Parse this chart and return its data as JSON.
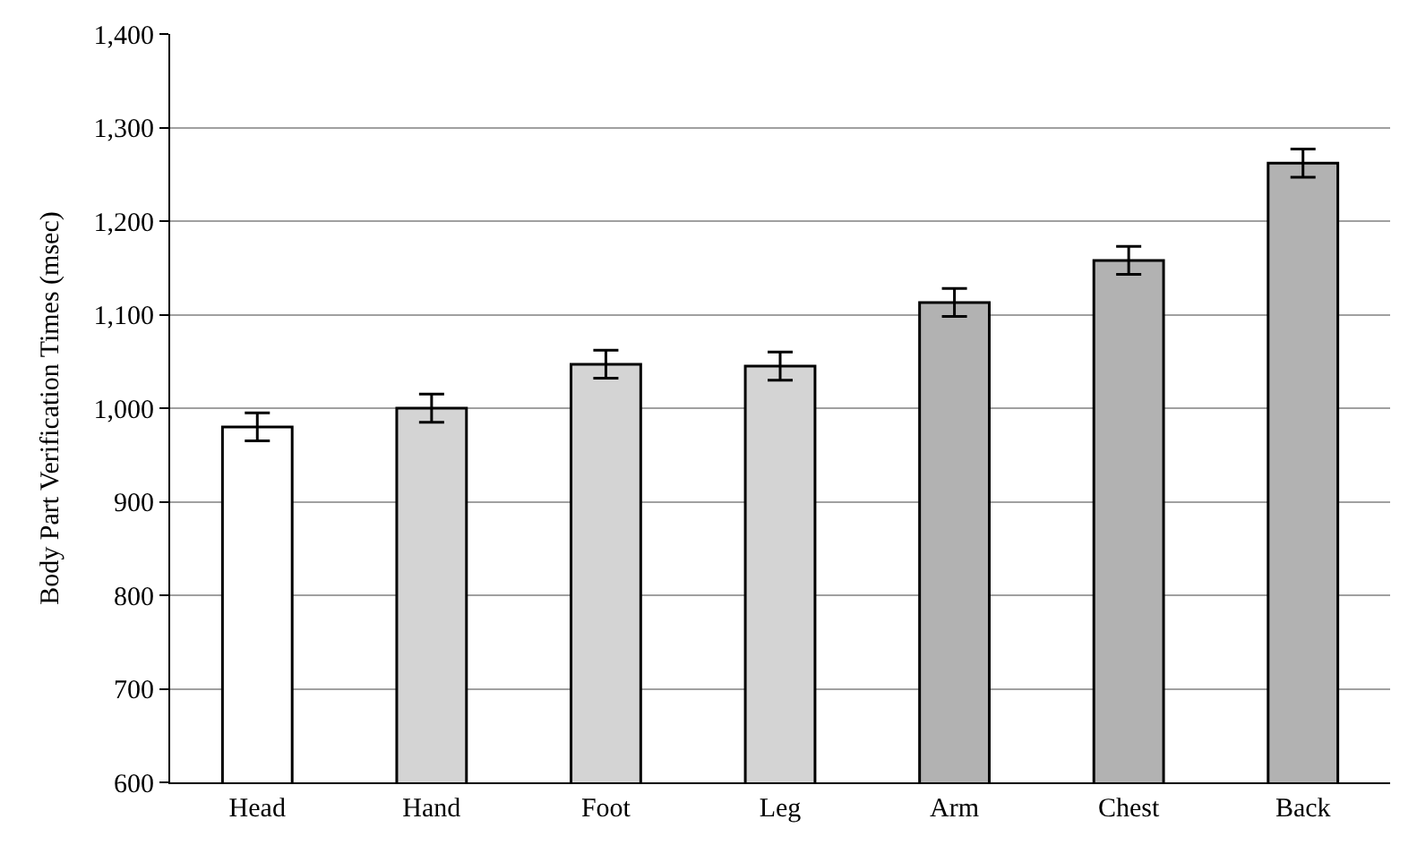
{
  "chart_data": {
    "type": "bar",
    "ylabel": "Body Part Verification Times (msec)",
    "categories": [
      "Head",
      "Hand",
      "Foot",
      "Leg",
      "Arm",
      "Chest",
      "Back"
    ],
    "values": [
      980,
      1000,
      1047,
      1045,
      1113,
      1158,
      1262
    ],
    "errors": [
      15,
      15,
      15,
      15,
      15,
      15,
      15
    ],
    "colors": [
      "#ffffff",
      "#d4d4d4",
      "#d4d4d4",
      "#d4d4d4",
      "#b2b2b2",
      "#b2b2b2",
      "#b2b2b2"
    ],
    "ylim": [
      600,
      1400
    ],
    "yticks": [
      {
        "value": 600,
        "label": "600"
      },
      {
        "value": 700,
        "label": "700"
      },
      {
        "value": 800,
        "label": "800"
      },
      {
        "value": 900,
        "label": "900"
      },
      {
        "value": 1000,
        "label": "1,000"
      },
      {
        "value": 1100,
        "label": "1,100"
      },
      {
        "value": 1200,
        "label": "1,200"
      },
      {
        "value": 1300,
        "label": "1,300"
      },
      {
        "value": 1400,
        "label": "1,400"
      }
    ],
    "grid": "y"
  }
}
